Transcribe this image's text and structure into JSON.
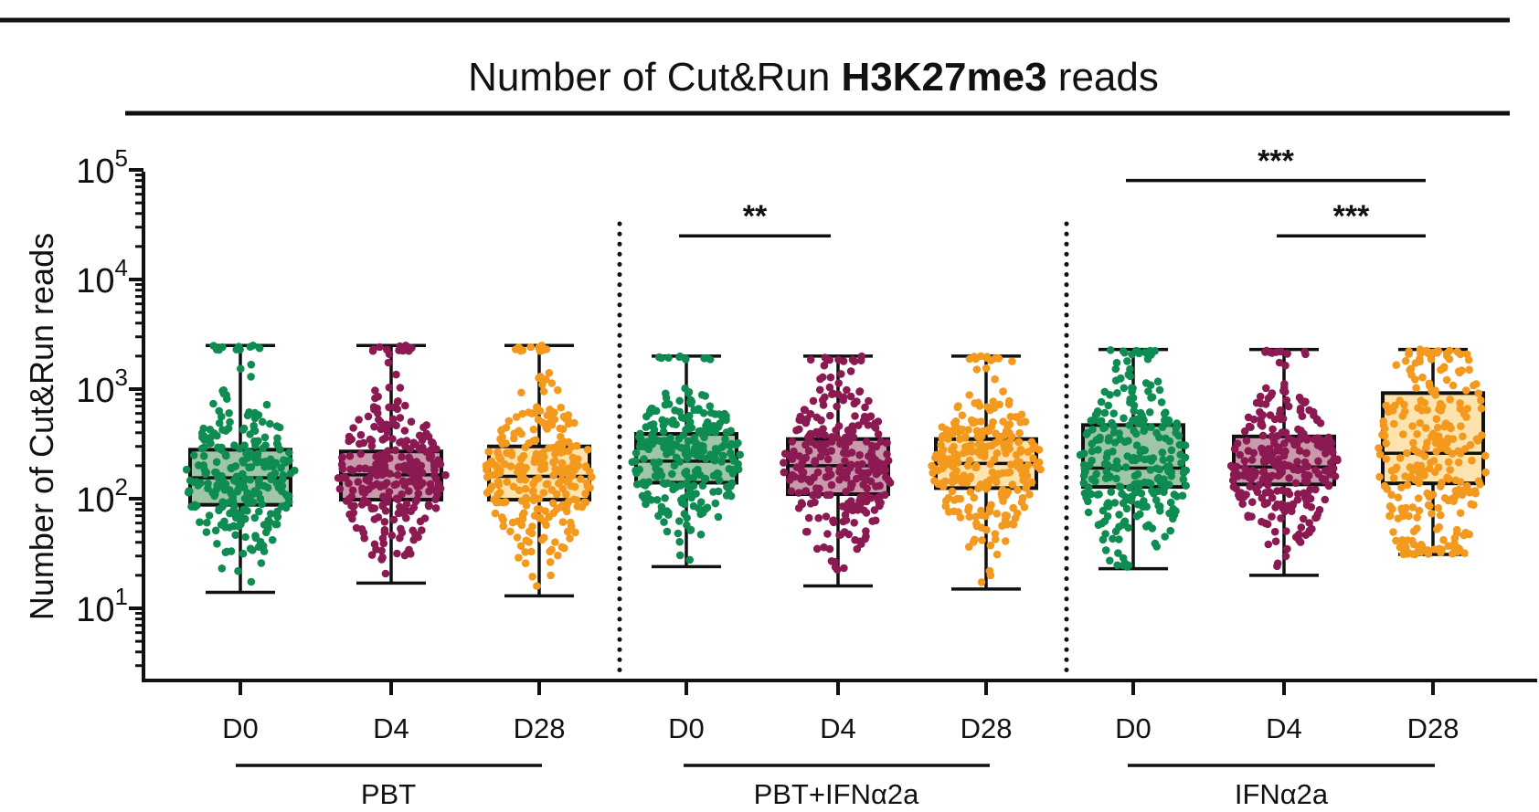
{
  "chart_data": {
    "type": "box",
    "title": "Number of Cut&Run H3K27me3 reads",
    "title_parts": [
      "Number of Cut&Run ",
      "H3K27me3",
      " reads"
    ],
    "ylabel": "Number of Cut&Run reads",
    "yscale": "log",
    "ylim": [
      2.5,
      100000
    ],
    "yticks": [
      {
        "value": 10,
        "base": "10",
        "exp": "1"
      },
      {
        "value": 100,
        "base": "10",
        "exp": "2"
      },
      {
        "value": 1000,
        "base": "10",
        "exp": "3"
      },
      {
        "value": 10000,
        "base": "10",
        "exp": "4"
      },
      {
        "value": 100000,
        "base": "10",
        "exp": "5"
      }
    ],
    "colors": {
      "D0": "#0e8c52",
      "D4": "#8b1a52",
      "D28": "#f39a1e"
    },
    "box_fills": {
      "D0": "#9fc7a6",
      "D4": "#c99aac",
      "D28": "#fde3ad"
    },
    "groups": [
      {
        "label": "PBT",
        "categories": [
          {
            "label": "D0",
            "day": "D0",
            "min": 14,
            "q1": 88,
            "median": 155,
            "q3": 280,
            "max": 2500
          },
          {
            "label": "D4",
            "day": "D4",
            "min": 17,
            "q1": 98,
            "median": 165,
            "q3": 270,
            "max": 2500
          },
          {
            "label": "D28",
            "day": "D28",
            "min": 13,
            "q1": 98,
            "median": 160,
            "q3": 300,
            "max": 2500
          }
        ]
      },
      {
        "label": "PBT+IFNα2a",
        "categories": [
          {
            "label": "D0",
            "day": "D0",
            "min": 24,
            "q1": 140,
            "median": 220,
            "q3": 390,
            "max": 2000
          },
          {
            "label": "D4",
            "day": "D4",
            "min": 16,
            "q1": 110,
            "median": 200,
            "q3": 350,
            "max": 2000
          },
          {
            "label": "D28",
            "day": "D28",
            "min": 15,
            "q1": 125,
            "median": 210,
            "q3": 350,
            "max": 2000
          }
        ]
      },
      {
        "label": "IFNα2a",
        "categories": [
          {
            "label": "D0",
            "day": "D0",
            "min": 23,
            "q1": 128,
            "median": 190,
            "q3": 470,
            "max": 2300
          },
          {
            "label": "D4",
            "day": "D4",
            "min": 20,
            "q1": 135,
            "median": 195,
            "q3": 370,
            "max": 2300
          },
          {
            "label": "D28",
            "day": "D28",
            "min": 31,
            "q1": 138,
            "median": 260,
            "q3": 920,
            "max": 2300
          }
        ]
      }
    ],
    "significance": [
      {
        "group": 1,
        "from": 0,
        "to": 1,
        "label": "**",
        "y": 25000
      },
      {
        "group": 2,
        "from": 0,
        "to": 2,
        "label": "***",
        "y": 80000
      },
      {
        "group": 2,
        "from": 1,
        "to": 2,
        "label": "***",
        "y": 25000
      }
    ]
  }
}
